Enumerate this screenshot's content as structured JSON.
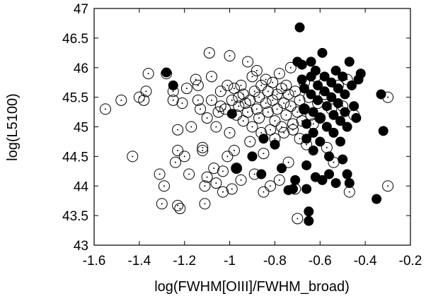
{
  "chart_data": {
    "type": "scatter",
    "title": "",
    "xlabel": "log(FWHM[OIII]/FWHM_broad)",
    "ylabel": "log(L5100)",
    "xlim": [
      -1.6,
      -0.2
    ],
    "ylim": [
      43,
      47
    ],
    "x_ticks": [
      "-1.6",
      "-1.4",
      "-1.2",
      "-1",
      "-0.8",
      "-0.6",
      "-0.4",
      "-0.2"
    ],
    "y_ticks": [
      "43",
      "43.5",
      "44",
      "44.5",
      "45",
      "45.5",
      "46",
      "46.5",
      "47"
    ],
    "grid": false,
    "legend": "none",
    "series": [
      {
        "marker": "open-circle-with-dot",
        "color": "#000000",
        "points": [
          [
            -1.55,
            45.3
          ],
          [
            -1.48,
            45.45
          ],
          [
            -1.43,
            44.5
          ],
          [
            -1.4,
            45.5
          ],
          [
            -1.38,
            45.45
          ],
          [
            -1.37,
            45.6
          ],
          [
            -1.36,
            45.9
          ],
          [
            -1.31,
            44.2
          ],
          [
            -1.3,
            43.7
          ],
          [
            -1.29,
            44.0
          ],
          [
            -1.28,
            45.9
          ],
          [
            -1.25,
            45.45
          ],
          [
            -1.25,
            45.6
          ],
          [
            -1.24,
            44.4
          ],
          [
            -1.23,
            44.6
          ],
          [
            -1.23,
            44.95
          ],
          [
            -1.23,
            43.67
          ],
          [
            -1.22,
            43.62
          ],
          [
            -1.21,
            45.4
          ],
          [
            -1.2,
            44.5
          ],
          [
            -1.19,
            45.65
          ],
          [
            -1.18,
            44.2
          ],
          [
            -1.17,
            45.0
          ],
          [
            -1.15,
            45.8
          ],
          [
            -1.14,
            45.7
          ],
          [
            -1.14,
            45.45
          ],
          [
            -1.13,
            45.3
          ],
          [
            -1.12,
            44.65
          ],
          [
            -1.12,
            44.6
          ],
          [
            -1.11,
            44.0
          ],
          [
            -1.11,
            43.7
          ],
          [
            -1.1,
            44.15
          ],
          [
            -1.1,
            45.15
          ],
          [
            -1.09,
            46.25
          ],
          [
            -1.08,
            45.85
          ],
          [
            -1.08,
            45.45
          ],
          [
            -1.07,
            44.3
          ],
          [
            -1.06,
            44.05
          ],
          [
            -1.06,
            45.0
          ],
          [
            -1.05,
            45.25
          ],
          [
            -1.04,
            45.35
          ],
          [
            -1.04,
            45.6
          ],
          [
            -1.03,
            44.25
          ],
          [
            -1.03,
            43.9
          ],
          [
            -1.02,
            45.3
          ],
          [
            -1.01,
            44.5
          ],
          [
            -1.01,
            45.7
          ],
          [
            -1.0,
            46.2
          ],
          [
            -1.0,
            44.9
          ],
          [
            -0.99,
            45.45
          ],
          [
            -0.99,
            43.95
          ],
          [
            -0.98,
            44.6
          ],
          [
            -0.98,
            45.65
          ],
          [
            -0.97,
            45.2
          ],
          [
            -0.97,
            44.3
          ],
          [
            -0.96,
            45.5
          ],
          [
            -0.96,
            45.35
          ],
          [
            -0.95,
            45.7
          ],
          [
            -0.95,
            44.1
          ],
          [
            -0.94,
            45.1
          ],
          [
            -0.94,
            45.55
          ],
          [
            -0.93,
            45.4
          ],
          [
            -0.92,
            46.1
          ],
          [
            -0.92,
            45.25
          ],
          [
            -0.91,
            44.75
          ],
          [
            -0.91,
            45.45
          ],
          [
            -0.9,
            45.85
          ],
          [
            -0.9,
            45.0
          ],
          [
            -0.89,
            45.6
          ],
          [
            -0.89,
            44.2
          ],
          [
            -0.88,
            45.3
          ],
          [
            -0.88,
            45.95
          ],
          [
            -0.87,
            45.5
          ],
          [
            -0.87,
            45.15
          ],
          [
            -0.86,
            44.9
          ],
          [
            -0.86,
            45.7
          ],
          [
            -0.85,
            44.55
          ],
          [
            -0.85,
            43.9
          ],
          [
            -0.84,
            45.4
          ],
          [
            -0.84,
            45.8
          ],
          [
            -0.83,
            45.6
          ],
          [
            -0.83,
            45.25
          ],
          [
            -0.82,
            44.95
          ],
          [
            -0.82,
            44.0
          ],
          [
            -0.81,
            45.75
          ],
          [
            -0.81,
            45.45
          ],
          [
            -0.8,
            44.8
          ],
          [
            -0.8,
            45.1
          ],
          [
            -0.79,
            45.55
          ],
          [
            -0.79,
            45.3
          ],
          [
            -0.78,
            45.9
          ],
          [
            -0.78,
            44.1
          ],
          [
            -0.77,
            45.65
          ],
          [
            -0.77,
            45.0
          ],
          [
            -0.76,
            45.4
          ],
          [
            -0.76,
            44.9
          ],
          [
            -0.75,
            45.2
          ],
          [
            -0.75,
            45.7
          ],
          [
            -0.74,
            44.4
          ],
          [
            -0.74,
            45.55
          ],
          [
            -0.73,
            46.0
          ],
          [
            -0.73,
            45.35
          ],
          [
            -0.72,
            45.05
          ],
          [
            -0.72,
            44.95
          ],
          [
            -0.71,
            45.6
          ],
          [
            -0.71,
            43.95
          ],
          [
            -0.7,
            43.45
          ],
          [
            -0.7,
            45.25
          ],
          [
            -0.69,
            45.45
          ],
          [
            -0.69,
            44.8
          ],
          [
            -0.68,
            45.1
          ],
          [
            -0.67,
            45.75
          ],
          [
            -0.67,
            45.3
          ],
          [
            -0.66,
            44.7
          ],
          [
            -0.65,
            45.5
          ],
          [
            -0.64,
            45.2
          ],
          [
            -0.63,
            45.05
          ],
          [
            -0.62,
            45.85
          ],
          [
            -0.61,
            45.4
          ],
          [
            -0.6,
            45.15
          ],
          [
            -0.58,
            45.55
          ],
          [
            -0.57,
            44.65
          ],
          [
            -0.55,
            45.3
          ],
          [
            -0.54,
            44.4
          ],
          [
            -0.52,
            45.7
          ],
          [
            -0.5,
            45.35
          ],
          [
            -0.48,
            45.8
          ],
          [
            -0.47,
            43.9
          ],
          [
            -0.45,
            45.2
          ],
          [
            -0.3,
            45.5
          ],
          [
            -0.3,
            44.0
          ]
        ]
      },
      {
        "marker": "filled-circle",
        "color": "#000000",
        "points": [
          [
            -1.28,
            45.92
          ],
          [
            -1.25,
            45.7
          ],
          [
            -0.99,
            45.22
          ],
          [
            -0.97,
            44.3
          ],
          [
            -0.9,
            44.5
          ],
          [
            -0.86,
            44.2
          ],
          [
            -0.85,
            44.8
          ],
          [
            -0.8,
            44.7
          ],
          [
            -0.77,
            44.3
          ],
          [
            -0.74,
            43.93
          ],
          [
            -0.72,
            43.95
          ],
          [
            -0.71,
            44.1
          ],
          [
            -0.7,
            46.1
          ],
          [
            -0.69,
            46.68
          ],
          [
            -0.68,
            46.05
          ],
          [
            -0.68,
            45.8
          ],
          [
            -0.67,
            45.65
          ],
          [
            -0.67,
            45.3
          ],
          [
            -0.66,
            45.05
          ],
          [
            -0.66,
            44.8
          ],
          [
            -0.66,
            44.35
          ],
          [
            -0.66,
            43.95
          ],
          [
            -0.65,
            43.57
          ],
          [
            -0.65,
            43.41
          ],
          [
            -0.64,
            46.1
          ],
          [
            -0.64,
            45.85
          ],
          [
            -0.64,
            45.55
          ],
          [
            -0.63,
            45.25
          ],
          [
            -0.63,
            44.9
          ],
          [
            -0.63,
            44.6
          ],
          [
            -0.62,
            44.15
          ],
          [
            -0.62,
            45.95
          ],
          [
            -0.61,
            45.7
          ],
          [
            -0.61,
            45.45
          ],
          [
            -0.6,
            45.15
          ],
          [
            -0.6,
            44.75
          ],
          [
            -0.59,
            44.1
          ],
          [
            -0.59,
            46.25
          ],
          [
            -0.58,
            45.85
          ],
          [
            -0.58,
            45.6
          ],
          [
            -0.57,
            45.35
          ],
          [
            -0.57,
            45.0
          ],
          [
            -0.56,
            44.5
          ],
          [
            -0.56,
            44.2
          ],
          [
            -0.55,
            45.75
          ],
          [
            -0.55,
            45.5
          ],
          [
            -0.54,
            45.2
          ],
          [
            -0.54,
            44.9
          ],
          [
            -0.53,
            44.05
          ],
          [
            -0.53,
            45.95
          ],
          [
            -0.52,
            45.65
          ],
          [
            -0.52,
            45.4
          ],
          [
            -0.51,
            45.1
          ],
          [
            -0.51,
            44.75
          ],
          [
            -0.5,
            44.45
          ],
          [
            -0.5,
            45.85
          ],
          [
            -0.49,
            45.55
          ],
          [
            -0.49,
            45.25
          ],
          [
            -0.48,
            45.0
          ],
          [
            -0.48,
            44.2
          ],
          [
            -0.47,
            44.05
          ],
          [
            -0.47,
            46.1
          ],
          [
            -0.46,
            45.7
          ],
          [
            -0.45,
            45.35
          ],
          [
            -0.44,
            45.15
          ],
          [
            -0.43,
            45.8
          ],
          [
            -0.42,
            45.9
          ],
          [
            -0.33,
            45.55
          ],
          [
            -0.32,
            44.93
          ],
          [
            -0.35,
            43.78
          ]
        ]
      }
    ]
  }
}
